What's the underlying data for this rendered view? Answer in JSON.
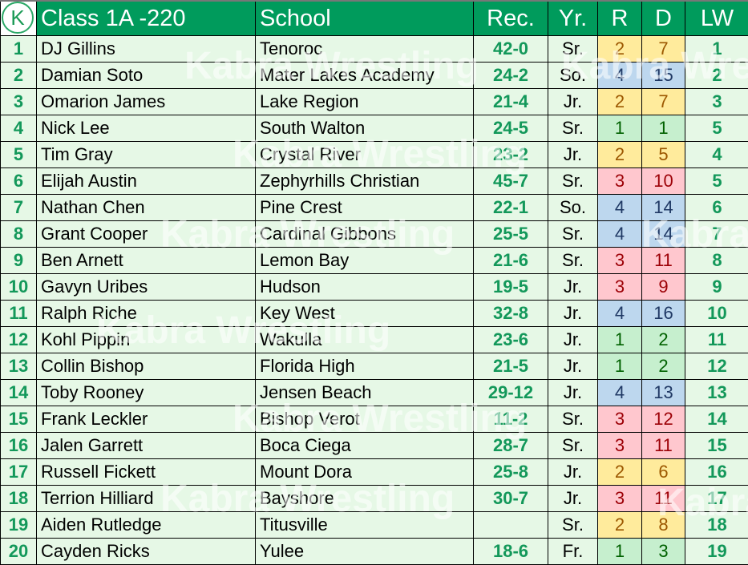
{
  "header": {
    "title": "Class 1A -220",
    "school": "School",
    "rec": "Rec.",
    "yr": "Yr.",
    "r": "R",
    "d": "D",
    "lw": "LW",
    "logo_text": "K"
  },
  "watermark": "Kabra Wrestling",
  "category_colors": {
    "yellow": "#FFEB9C",
    "blue": "#BDD7EE",
    "green": "#C6EFCE",
    "red": "#FFC7CE"
  },
  "rows": [
    {
      "rank": "1",
      "name": "DJ Gillins",
      "school": "Tenoroc",
      "rec": "42-0",
      "yr": "Sr.",
      "r": "2",
      "d": "7",
      "lw": "1",
      "color": "yellow"
    },
    {
      "rank": "2",
      "name": "Damian Soto",
      "school": "Mater Lakes Academy",
      "rec": "24-2",
      "yr": "So.",
      "r": "4",
      "d": "15",
      "lw": "2",
      "color": "blue"
    },
    {
      "rank": "3",
      "name": "Omarion James",
      "school": "Lake Region",
      "rec": "21-4",
      "yr": "Jr.",
      "r": "2",
      "d": "7",
      "lw": "3",
      "color": "yellow"
    },
    {
      "rank": "4",
      "name": "Nick Lee",
      "school": "South Walton",
      "rec": "24-5",
      "yr": "Sr.",
      "r": "1",
      "d": "1",
      "lw": "5",
      "color": "green"
    },
    {
      "rank": "5",
      "name": "Tim Gray",
      "school": "Crystal River",
      "rec": "23-2",
      "yr": "Jr.",
      "r": "2",
      "d": "5",
      "lw": "4",
      "color": "yellow"
    },
    {
      "rank": "6",
      "name": "Elijah Austin",
      "school": "Zephyrhills Christian",
      "rec": "45-7",
      "yr": "Sr.",
      "r": "3",
      "d": "10",
      "lw": "5",
      "color": "red"
    },
    {
      "rank": "7",
      "name": "Nathan Chen",
      "school": "Pine Crest",
      "rec": "22-1",
      "yr": "So.",
      "r": "4",
      "d": "14",
      "lw": "6",
      "color": "blue"
    },
    {
      "rank": "8",
      "name": "Grant Cooper",
      "school": "Cardinal Gibbons",
      "rec": "25-5",
      "yr": "Sr.",
      "r": "4",
      "d": "14",
      "lw": "7",
      "color": "blue"
    },
    {
      "rank": "9",
      "name": "Ben Arnett",
      "school": "Lemon Bay",
      "rec": "21-6",
      "yr": "Sr.",
      "r": "3",
      "d": "11",
      "lw": "8",
      "color": "red"
    },
    {
      "rank": "10",
      "name": "Gavyn Uribes",
      "school": "Hudson",
      "rec": "19-5",
      "yr": "Jr.",
      "r": "3",
      "d": "9",
      "lw": "9",
      "color": "red"
    },
    {
      "rank": "11",
      "name": "Ralph Riche",
      "school": "Key West",
      "rec": "32-8",
      "yr": "Jr.",
      "r": "4",
      "d": "16",
      "lw": "10",
      "color": "blue"
    },
    {
      "rank": "12",
      "name": "Kohl Pippin",
      "school": "Wakulla",
      "rec": "23-6",
      "yr": "Jr.",
      "r": "1",
      "d": "2",
      "lw": "11",
      "color": "green"
    },
    {
      "rank": "13",
      "name": "Collin Bishop",
      "school": "Florida High",
      "rec": "21-5",
      "yr": "Jr.",
      "r": "1",
      "d": "2",
      "lw": "12",
      "color": "green"
    },
    {
      "rank": "14",
      "name": "Toby Rooney",
      "school": "Jensen Beach",
      "rec": "29-12",
      "yr": "Jr.",
      "r": "4",
      "d": "13",
      "lw": "13",
      "color": "blue"
    },
    {
      "rank": "15",
      "name": "Frank Leckler",
      "school": "Bishop Verot",
      "rec": "11-2",
      "yr": "Sr.",
      "r": "3",
      "d": "12",
      "lw": "14",
      "color": "red"
    },
    {
      "rank": "16",
      "name": "Jalen Garrett",
      "school": "Boca Ciega",
      "rec": "28-7",
      "yr": "Sr.",
      "r": "3",
      "d": "11",
      "lw": "15",
      "color": "red"
    },
    {
      "rank": "17",
      "name": "Russell Fickett",
      "school": "Mount Dora",
      "rec": "25-8",
      "yr": "Jr.",
      "r": "2",
      "d": "6",
      "lw": "16",
      "color": "yellow"
    },
    {
      "rank": "18",
      "name": "Terrion Hilliard",
      "school": "Bayshore",
      "rec": "30-7",
      "yr": "Jr.",
      "r": "3",
      "d": "11",
      "lw": "17",
      "color": "red"
    },
    {
      "rank": "19",
      "name": "Aiden Rutledge",
      "school": "Titusville",
      "rec": "",
      "yr": "Sr.",
      "r": "2",
      "d": "8",
      "lw": "18",
      "color": "yellow"
    },
    {
      "rank": "20",
      "name": "Cayden Ricks",
      "school": "Yulee",
      "rec": "18-6",
      "yr": "Fr.",
      "r": "1",
      "d": "3",
      "lw": "19",
      "color": "green"
    }
  ]
}
